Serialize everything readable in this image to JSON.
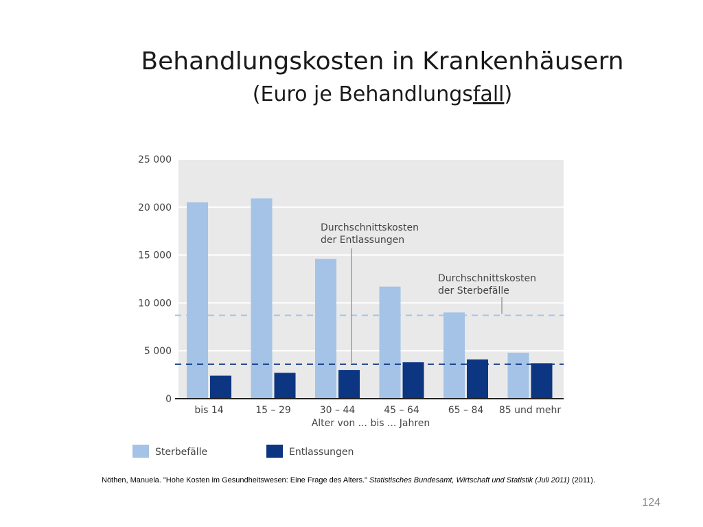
{
  "slide": {
    "title_line1": "Behandlungskosten in Krankenhäusern",
    "title_line2_a": "(Euro je Behandlungs",
    "title_line2_b": "fall",
    "title_line2_c": ")",
    "source_a": "Nöthen, Manuela. \"Hohe Kosten im Gesundheitswesen: Eine Frage des Alters.\" ",
    "source_b": "Statistisches Bundesamt, Wirtschaft und Statistik (Juli 2011)",
    "source_c": " (2011).",
    "page_number": "124"
  },
  "chart_data": {
    "type": "bar",
    "xlabel": "Alter von ... bis ... Jahren",
    "ylabel": "",
    "ylim": [
      0,
      25000
    ],
    "yticks": [
      0,
      5000,
      10000,
      15000,
      20000,
      25000
    ],
    "ytick_labels": [
      "0",
      "5 000",
      "10 000",
      "15 000",
      "20 000",
      "25 000"
    ],
    "categories": [
      "bis 14",
      "15 – 29",
      "30 – 44",
      "45 – 64",
      "65 – 84",
      "85 und mehr"
    ],
    "series": [
      {
        "name": "Sterbefälle",
        "color": "#a4c3e6",
        "values": [
          20500,
          20900,
          14600,
          11700,
          9000,
          4800
        ]
      },
      {
        "name": "Entlassungen",
        "color": "#0c3582",
        "values": [
          2400,
          2700,
          3000,
          3800,
          4100,
          3700
        ]
      }
    ],
    "reference_lines": [
      {
        "label_line1": "Durchschnittskosten",
        "label_line2": "der Sterbefälle",
        "value": 8700,
        "color": "#a4c3e6"
      },
      {
        "label_line1": "Durchschnittskosten",
        "label_line2": "der Entlassungen",
        "value": 3600,
        "color": "#0c3582"
      }
    ],
    "grid": true,
    "plot_background": "#e9e9e9",
    "legend_position": "bottom"
  }
}
